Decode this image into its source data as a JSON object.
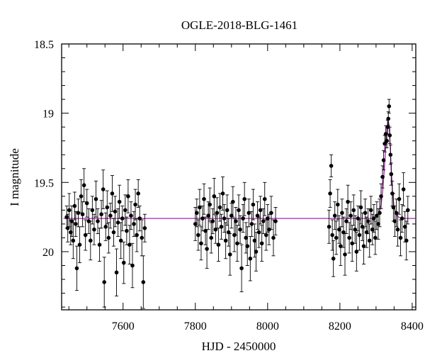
{
  "chart_data": {
    "type": "scatter",
    "title": "OGLE-2018-BLG-1461",
    "xlabel": "HJD - 2450000",
    "ylabel": "I magnitude",
    "xlim": [
      7430,
      8410
    ],
    "ylim": [
      18.5,
      20.42
    ],
    "y_inverted": true,
    "x_ticks": [
      7600,
      7800,
      8000,
      8200,
      8400
    ],
    "x_tick_labels": [
      "7600",
      "7800",
      "8000",
      "8200",
      "8400"
    ],
    "y_ticks": [
      18.5,
      19,
      19.5,
      20
    ],
    "y_tick_labels": [
      "18.5",
      "19",
      "19.5",
      "20"
    ],
    "grid": false,
    "colors": {
      "data": "#000000",
      "model": "#b31fb3"
    },
    "series": [
      {
        "kind": "points-with-errorbars",
        "points": [
          {
            "x": 7444,
            "y": 19.75,
            "err": 0.08
          },
          {
            "x": 7447,
            "y": 19.83,
            "err": 0.1
          },
          {
            "x": 7451,
            "y": 19.7,
            "err": 0.12
          },
          {
            "x": 7455,
            "y": 19.86,
            "err": 0.09
          },
          {
            "x": 7458,
            "y": 19.78,
            "err": 0.11
          },
          {
            "x": 7462,
            "y": 19.92,
            "err": 0.13
          },
          {
            "x": 7466,
            "y": 19.67,
            "err": 0.1
          },
          {
            "x": 7469,
            "y": 19.8,
            "err": 0.09
          },
          {
            "x": 7472,
            "y": 20.12,
            "err": 0.16
          },
          {
            "x": 7476,
            "y": 19.72,
            "err": 0.1
          },
          {
            "x": 7480,
            "y": 19.95,
            "err": 0.13
          },
          {
            "x": 7484,
            "y": 19.6,
            "err": 0.12
          },
          {
            "x": 7488,
            "y": 19.73,
            "err": 0.09
          },
          {
            "x": 7492,
            "y": 19.52,
            "err": 0.12
          },
          {
            "x": 7496,
            "y": 19.88,
            "err": 0.11
          },
          {
            "x": 7500,
            "y": 19.65,
            "err": 0.1
          },
          {
            "x": 7505,
            "y": 19.78,
            "err": 0.09
          },
          {
            "x": 7510,
            "y": 19.92,
            "err": 0.14
          },
          {
            "x": 7515,
            "y": 19.7,
            "err": 0.1
          },
          {
            "x": 7520,
            "y": 19.84,
            "err": 0.11
          },
          {
            "x": 7525,
            "y": 19.62,
            "err": 0.13
          },
          {
            "x": 7530,
            "y": 19.78,
            "err": 0.09
          },
          {
            "x": 7535,
            "y": 19.95,
            "err": 0.12
          },
          {
            "x": 7540,
            "y": 19.73,
            "err": 0.1
          },
          {
            "x": 7545,
            "y": 19.55,
            "err": 0.14
          },
          {
            "x": 7548,
            "y": 20.22,
            "err": 0.18
          },
          {
            "x": 7552,
            "y": 19.82,
            "err": 0.1
          },
          {
            "x": 7556,
            "y": 19.68,
            "err": 0.12
          },
          {
            "x": 7560,
            "y": 19.9,
            "err": 0.11
          },
          {
            "x": 7565,
            "y": 19.74,
            "err": 0.09
          },
          {
            "x": 7570,
            "y": 19.58,
            "err": 0.13
          },
          {
            "x": 7574,
            "y": 19.86,
            "err": 0.1
          },
          {
            "x": 7578,
            "y": 19.71,
            "err": 0.11
          },
          {
            "x": 7582,
            "y": 20.15,
            "err": 0.17
          },
          {
            "x": 7586,
            "y": 19.79,
            "err": 0.1
          },
          {
            "x": 7590,
            "y": 19.64,
            "err": 0.12
          },
          {
            "x": 7594,
            "y": 19.92,
            "err": 0.13
          },
          {
            "x": 7598,
            "y": 19.76,
            "err": 0.09
          },
          {
            "x": 7602,
            "y": 20.08,
            "err": 0.15
          },
          {
            "x": 7606,
            "y": 19.7,
            "err": 0.11
          },
          {
            "x": 7610,
            "y": 19.85,
            "err": 0.1
          },
          {
            "x": 7614,
            "y": 19.6,
            "err": 0.12
          },
          {
            "x": 7618,
            "y": 19.95,
            "err": 0.14
          },
          {
            "x": 7622,
            "y": 19.74,
            "err": 0.1
          },
          {
            "x": 7626,
            "y": 20.1,
            "err": 0.16
          },
          {
            "x": 7630,
            "y": 19.8,
            "err": 0.09
          },
          {
            "x": 7634,
            "y": 19.66,
            "err": 0.11
          },
          {
            "x": 7638,
            "y": 19.88,
            "err": 0.12
          },
          {
            "x": 7642,
            "y": 19.58,
            "err": 0.1
          },
          {
            "x": 7646,
            "y": 19.76,
            "err": 0.09
          },
          {
            "x": 7652,
            "y": 19.9,
            "err": 0.13
          },
          {
            "x": 7656,
            "y": 20.22,
            "err": 0.19
          },
          {
            "x": 7660,
            "y": 19.83,
            "err": 0.1
          },
          {
            "x": 7800,
            "y": 19.8,
            "err": 0.12
          },
          {
            "x": 7804,
            "y": 19.72,
            "err": 0.1
          },
          {
            "x": 7808,
            "y": 19.88,
            "err": 0.11
          },
          {
            "x": 7812,
            "y": 19.68,
            "err": 0.13
          },
          {
            "x": 7816,
            "y": 19.94,
            "err": 0.12
          },
          {
            "x": 7820,
            "y": 19.76,
            "err": 0.09
          },
          {
            "x": 7824,
            "y": 19.62,
            "err": 0.11
          },
          {
            "x": 7828,
            "y": 19.85,
            "err": 0.1
          },
          {
            "x": 7832,
            "y": 19.98,
            "err": 0.14
          },
          {
            "x": 7836,
            "y": 19.74,
            "err": 0.1
          },
          {
            "x": 7840,
            "y": 19.66,
            "err": 0.12
          },
          {
            "x": 7844,
            "y": 19.9,
            "err": 0.11
          },
          {
            "x": 7848,
            "y": 19.78,
            "err": 0.09
          },
          {
            "x": 7852,
            "y": 19.6,
            "err": 0.13
          },
          {
            "x": 7856,
            "y": 19.84,
            "err": 0.1
          },
          {
            "x": 7860,
            "y": 19.72,
            "err": 0.11
          },
          {
            "x": 7864,
            "y": 19.95,
            "err": 0.12
          },
          {
            "x": 7868,
            "y": 19.68,
            "err": 0.1
          },
          {
            "x": 7872,
            "y": 19.82,
            "err": 0.09
          },
          {
            "x": 7876,
            "y": 19.58,
            "err": 0.12
          },
          {
            "x": 7880,
            "y": 19.76,
            "err": 0.1
          },
          {
            "x": 7884,
            "y": 19.92,
            "err": 0.13
          },
          {
            "x": 7888,
            "y": 19.7,
            "err": 0.11
          },
          {
            "x": 7892,
            "y": 19.86,
            "err": 0.1
          },
          {
            "x": 7896,
            "y": 20.02,
            "err": 0.15
          },
          {
            "x": 7900,
            "y": 19.74,
            "err": 0.09
          },
          {
            "x": 7904,
            "y": 19.64,
            "err": 0.11
          },
          {
            "x": 7908,
            "y": 19.88,
            "err": 0.12
          },
          {
            "x": 7912,
            "y": 19.78,
            "err": 0.1
          },
          {
            "x": 7916,
            "y": 19.94,
            "err": 0.13
          },
          {
            "x": 7920,
            "y": 19.7,
            "err": 0.11
          },
          {
            "x": 7924,
            "y": 19.84,
            "err": 0.1
          },
          {
            "x": 7928,
            "y": 20.12,
            "err": 0.17
          },
          {
            "x": 7932,
            "y": 19.76,
            "err": 0.1
          },
          {
            "x": 7936,
            "y": 19.62,
            "err": 0.12
          },
          {
            "x": 7940,
            "y": 19.9,
            "err": 0.11
          },
          {
            "x": 7944,
            "y": 19.96,
            "err": 0.14
          },
          {
            "x": 7948,
            "y": 19.72,
            "err": 0.1
          },
          {
            "x": 7952,
            "y": 20.05,
            "err": 0.16
          },
          {
            "x": 7956,
            "y": 19.8,
            "err": 0.09
          },
          {
            "x": 7960,
            "y": 19.66,
            "err": 0.11
          },
          {
            "x": 7964,
            "y": 19.92,
            "err": 0.12
          },
          {
            "x": 7968,
            "y": 20.0,
            "err": 0.14
          },
          {
            "x": 7972,
            "y": 19.74,
            "err": 0.1
          },
          {
            "x": 7976,
            "y": 19.86,
            "err": 0.11
          },
          {
            "x": 7980,
            "y": 19.7,
            "err": 0.1
          },
          {
            "x": 7984,
            "y": 19.94,
            "err": 0.13
          },
          {
            "x": 7988,
            "y": 19.78,
            "err": 0.09
          },
          {
            "x": 7992,
            "y": 19.62,
            "err": 0.12
          },
          {
            "x": 7996,
            "y": 19.88,
            "err": 0.11
          },
          {
            "x": 8000,
            "y": 19.76,
            "err": 0.1
          },
          {
            "x": 8004,
            "y": 19.84,
            "err": 0.11
          },
          {
            "x": 8010,
            "y": 19.72,
            "err": 0.12
          },
          {
            "x": 8016,
            "y": 19.9,
            "err": 0.13
          },
          {
            "x": 8022,
            "y": 19.78,
            "err": 0.1
          },
          {
            "x": 8170,
            "y": 19.82,
            "err": 0.12
          },
          {
            "x": 8173,
            "y": 19.58,
            "err": 0.1
          },
          {
            "x": 8176,
            "y": 19.38,
            "err": 0.08
          },
          {
            "x": 8179,
            "y": 19.88,
            "err": 0.11
          },
          {
            "x": 8182,
            "y": 20.05,
            "err": 0.13
          },
          {
            "x": 8186,
            "y": 19.74,
            "err": 0.1
          },
          {
            "x": 8190,
            "y": 19.9,
            "err": 0.12
          },
          {
            "x": 8194,
            "y": 19.66,
            "err": 0.11
          },
          {
            "x": 8198,
            "y": 19.84,
            "err": 0.1
          },
          {
            "x": 8202,
            "y": 19.96,
            "err": 0.14
          },
          {
            "x": 8206,
            "y": 19.72,
            "err": 0.1
          },
          {
            "x": 8210,
            "y": 19.86,
            "err": 0.11
          },
          {
            "x": 8214,
            "y": 20.02,
            "err": 0.15
          },
          {
            "x": 8218,
            "y": 19.78,
            "err": 0.09
          },
          {
            "x": 8222,
            "y": 19.64,
            "err": 0.12
          },
          {
            "x": 8226,
            "y": 19.9,
            "err": 0.11
          },
          {
            "x": 8230,
            "y": 19.74,
            "err": 0.1
          },
          {
            "x": 8234,
            "y": 19.94,
            "err": 0.13
          },
          {
            "x": 8238,
            "y": 19.7,
            "err": 0.11
          },
          {
            "x": 8242,
            "y": 19.84,
            "err": 0.1
          },
          {
            "x": 8246,
            "y": 20.0,
            "err": 0.14
          },
          {
            "x": 8250,
            "y": 19.76,
            "err": 0.09
          },
          {
            "x": 8254,
            "y": 19.88,
            "err": 0.11
          },
          {
            "x": 8258,
            "y": 19.68,
            "err": 0.12
          },
          {
            "x": 8262,
            "y": 19.82,
            "err": 0.1
          },
          {
            "x": 8266,
            "y": 19.96,
            "err": 0.13
          },
          {
            "x": 8270,
            "y": 19.72,
            "err": 0.1
          },
          {
            "x": 8274,
            "y": 19.86,
            "err": 0.11
          },
          {
            "x": 8278,
            "y": 19.78,
            "err": 0.09
          },
          {
            "x": 8282,
            "y": 19.92,
            "err": 0.12
          },
          {
            "x": 8286,
            "y": 19.7,
            "err": 0.1
          },
          {
            "x": 8290,
            "y": 19.84,
            "err": 0.11
          },
          {
            "x": 8294,
            "y": 19.76,
            "err": 0.1
          },
          {
            "x": 8298,
            "y": 19.9,
            "err": 0.12
          },
          {
            "x": 8302,
            "y": 19.74,
            "err": 0.1
          },
          {
            "x": 8306,
            "y": 19.8,
            "err": 0.11
          },
          {
            "x": 8310,
            "y": 19.72,
            "err": 0.1
          },
          {
            "x": 8314,
            "y": 19.6,
            "err": 0.09
          },
          {
            "x": 8318,
            "y": 19.46,
            "err": 0.08
          },
          {
            "x": 8321,
            "y": 19.34,
            "err": 0.07
          },
          {
            "x": 8324,
            "y": 19.22,
            "err": 0.06
          },
          {
            "x": 8327,
            "y": 19.15,
            "err": 0.06
          },
          {
            "x": 8330,
            "y": 19.2,
            "err": 0.05
          },
          {
            "x": 8332,
            "y": 19.1,
            "err": 0.05
          },
          {
            "x": 8334,
            "y": 19.04,
            "err": 0.05
          },
          {
            "x": 8336,
            "y": 18.95,
            "err": 0.05
          },
          {
            "x": 8338,
            "y": 19.16,
            "err": 0.06
          },
          {
            "x": 8340,
            "y": 19.3,
            "err": 0.07
          },
          {
            "x": 8342,
            "y": 19.44,
            "err": 0.08
          },
          {
            "x": 8345,
            "y": 19.58,
            "err": 0.09
          },
          {
            "x": 8348,
            "y": 19.68,
            "err": 0.1
          },
          {
            "x": 8352,
            "y": 19.78,
            "err": 0.11
          },
          {
            "x": 8356,
            "y": 19.72,
            "err": 0.1
          },
          {
            "x": 8360,
            "y": 19.84,
            "err": 0.12
          },
          {
            "x": 8364,
            "y": 19.62,
            "err": 0.11
          },
          {
            "x": 8368,
            "y": 19.9,
            "err": 0.13
          },
          {
            "x": 8372,
            "y": 19.76,
            "err": 0.1
          },
          {
            "x": 8376,
            "y": 19.55,
            "err": 0.12
          },
          {
            "x": 8380,
            "y": 19.82,
            "err": 0.11
          },
          {
            "x": 8384,
            "y": 19.92,
            "err": 0.14
          },
          {
            "x": 8388,
            "y": 19.7,
            "err": 0.1
          }
        ]
      },
      {
        "kind": "model-curve",
        "x": [
          7435,
          8290,
          8300,
          8308,
          8314,
          8318,
          8322,
          8326,
          8330,
          8333,
          8336,
          8339,
          8342,
          8346,
          8350,
          8355,
          8362,
          8372,
          8385,
          8408
        ],
        "y": [
          19.76,
          19.76,
          19.75,
          19.72,
          19.66,
          19.57,
          19.44,
          19.28,
          19.12,
          19.05,
          19.08,
          19.22,
          19.4,
          19.58,
          19.68,
          19.73,
          19.75,
          19.76,
          19.76,
          19.76
        ]
      }
    ]
  }
}
